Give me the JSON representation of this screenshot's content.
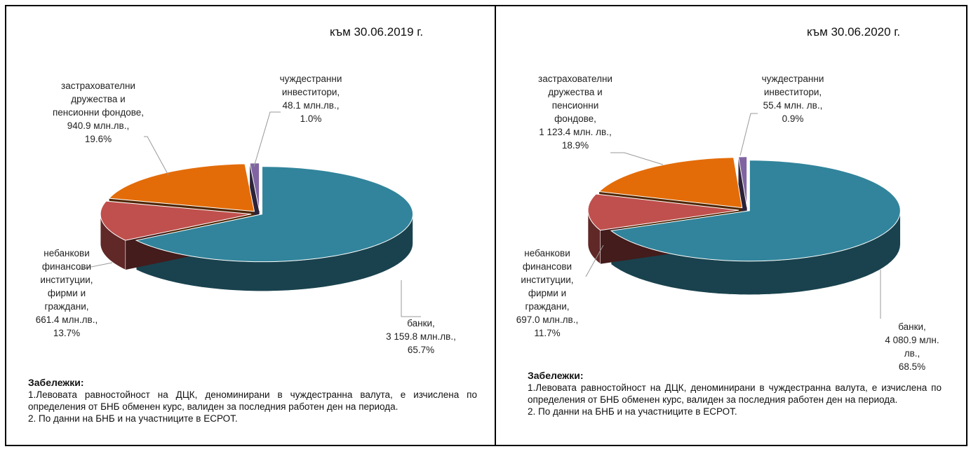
{
  "chart_data": [
    {
      "type": "pie3d",
      "title": "към 30.06.2019 г.",
      "categories": [
        "банки,",
        "небанкови\nфинансови\nинституции,\nфирми и\nграждани,",
        "застрахователни\nдружества и\nпенсионни фондове,",
        "чуждестранни\nинвеститори,"
      ],
      "values": [
        65.7,
        13.7,
        19.6,
        1.0
      ],
      "value_labels": [
        "65.7%",
        "13.7%",
        "19.6%",
        "1.0%"
      ],
      "amount_labels": [
        "3 159.8 млн.лв.,",
        "661.4 млн.лв.,",
        "940.9 млн.лв.,",
        "48.1 млн.лв.,"
      ],
      "colors": [
        "#31849b",
        "#c0504d",
        "#e36c09",
        "#8064a2"
      ],
      "notes_title": "Забележки:",
      "notes": [
        "1.Левовата равностойност на ДЦК, деноминирани в чуждестранна валута, е изчислена по определения от БНБ обменен курс, валиден за последния работен ден на периода.",
        "2. По данни на БНБ и на участниците в ЕСРОТ."
      ]
    },
    {
      "type": "pie3d",
      "title": "към 30.06.2020 г.",
      "categories": [
        "банки,",
        "небанкови\nфинансови\nинституции,\nфирми и\nграждани,",
        "застрахователни\nдружества и\nпенсионни\nфондове,",
        "чуждестранни\nинвеститори,"
      ],
      "values": [
        68.5,
        11.7,
        18.9,
        0.9
      ],
      "value_labels": [
        "68.5%",
        "11.7%",
        "18.9%",
        "0.9%"
      ],
      "amount_labels": [
        "4 080.9 млн. лв.,",
        "697.0 млн.лв.,",
        "1 123.4 млн. лв.,",
        "55.4 млн. лв.,"
      ],
      "colors": [
        "#31849b",
        "#c0504d",
        "#e36c09",
        "#8064a2"
      ],
      "notes_title": "Забележки:",
      "notes": [
        "1.Левовата равностойност на ДЦК, деноминирани в чуждестранна валута, е изчислена по определения от БНБ обменен курс, валиден за последния работен ден на периода.",
        "2. По данни на БНБ и на участниците в ЕСРОТ."
      ]
    }
  ]
}
